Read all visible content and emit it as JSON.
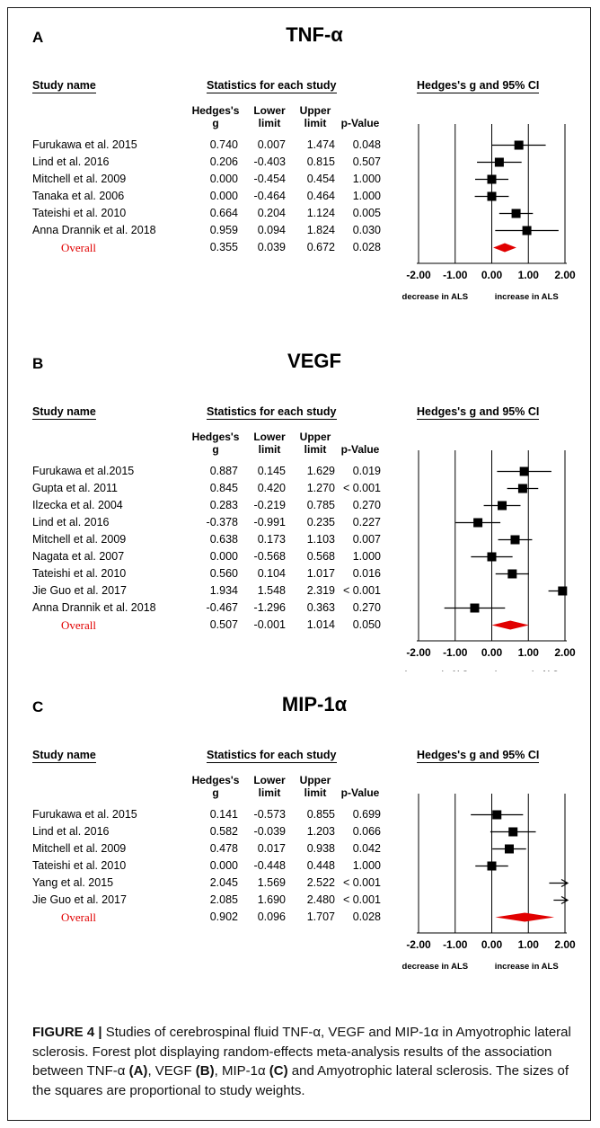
{
  "headers": {
    "study_name": "Study name",
    "stats": "Statistics for each study",
    "ci": "Hedges's g and 95% CI",
    "col_g": "Hedges's\ng",
    "col_lower": "Lower\nlimit",
    "col_upper": "Upper\nlimit",
    "col_p": "p-Value"
  },
  "axis": {
    "ticks": [
      "-2.00",
      "-1.00",
      "0.00",
      "1.00",
      "2.00"
    ],
    "left_label": "decrease in ALS",
    "right_label": "increase in ALS"
  },
  "chart_data": [
    {
      "type": "forest",
      "panel": "A",
      "title": "TNF-α",
      "xlim": [
        -2,
        2
      ],
      "rows": [
        {
          "study": "Furukawa et al. 2015",
          "g": "0.740",
          "lower": "0.007",
          "upper": "1.474",
          "p": "0.048"
        },
        {
          "study": "Lind et al. 2016",
          "g": "0.206",
          "lower": "-0.403",
          "upper": "0.815",
          "p": "0.507"
        },
        {
          "study": "Mitchell et al. 2009",
          "g": "0.000",
          "lower": "-0.454",
          "upper": "0.454",
          "p": "1.000"
        },
        {
          "study": "Tanaka et al. 2006",
          "g": "0.000",
          "lower": "-0.464",
          "upper": "0.464",
          "p": "1.000"
        },
        {
          "study": "Tateishi et al. 2010",
          "g": "0.664",
          "lower": "0.204",
          "upper": "1.124",
          "p": "0.005"
        },
        {
          "study": "Anna Drannik et al. 2018",
          "g": "0.959",
          "lower": "0.094",
          "upper": "1.824",
          "p": "0.030"
        }
      ],
      "overall": {
        "label": "Overall",
        "g": "0.355",
        "lower": "0.039",
        "upper": "0.672",
        "p": "0.028"
      }
    },
    {
      "type": "forest",
      "panel": "B",
      "title": "VEGF",
      "xlim": [
        -2,
        2
      ],
      "rows": [
        {
          "study": "Furukawa et al.2015",
          "g": "0.887",
          "lower": "0.145",
          "upper": "1.629",
          "p": "0.019"
        },
        {
          "study": "Gupta et al. 2011",
          "g": "0.845",
          "lower": "0.420",
          "upper": "1.270",
          "p": "< 0.001"
        },
        {
          "study": "Ilzecka et al. 2004",
          "g": "0.283",
          "lower": "-0.219",
          "upper": "0.785",
          "p": "0.270"
        },
        {
          "study": "Lind et al. 2016",
          "g": "-0.378",
          "lower": "-0.991",
          "upper": "0.235",
          "p": "0.227"
        },
        {
          "study": "Mitchell et al. 2009",
          "g": "0.638",
          "lower": "0.173",
          "upper": "1.103",
          "p": "0.007"
        },
        {
          "study": "Nagata et al. 2007",
          "g": "0.000",
          "lower": "-0.568",
          "upper": "0.568",
          "p": "1.000"
        },
        {
          "study": "Tateishi et al. 2010",
          "g": "0.560",
          "lower": "0.104",
          "upper": "1.017",
          "p": "0.016"
        },
        {
          "study": "Jie Guo et al. 2017",
          "g": "1.934",
          "lower": "1.548",
          "upper": "2.319",
          "p": "< 0.001"
        },
        {
          "study": "Anna Drannik et al. 2018",
          "g": "-0.467",
          "lower": "-1.296",
          "upper": "0.363",
          "p": "0.270"
        }
      ],
      "overall": {
        "label": "Overall",
        "g": "0.507",
        "lower": "-0.001",
        "upper": "1.014",
        "p": "0.050"
      }
    },
    {
      "type": "forest",
      "panel": "C",
      "title": "MIP-1α",
      "xlim": [
        -2,
        2
      ],
      "rows": [
        {
          "study": "Furukawa et al. 2015",
          "g": "0.141",
          "lower": "-0.573",
          "upper": "0.855",
          "p": "0.699"
        },
        {
          "study": "Lind et al. 2016",
          "g": "0.582",
          "lower": "-0.039",
          "upper": "1.203",
          "p": "0.066"
        },
        {
          "study": "Mitchell et al. 2009",
          "g": "0.478",
          "lower": "0.017",
          "upper": "0.938",
          "p": "0.042"
        },
        {
          "study": "Tateishi et al. 2010",
          "g": "0.000",
          "lower": "-0.448",
          "upper": "0.448",
          "p": "1.000"
        },
        {
          "study": "Yang et al. 2015",
          "g": "2.045",
          "lower": "1.569",
          "upper": "2.522",
          "p": "< 0.001"
        },
        {
          "study": "Jie Guo et al. 2017",
          "g": "2.085",
          "lower": "1.690",
          "upper": "2.480",
          "p": "< 0.001"
        }
      ],
      "overall": {
        "label": "Overall",
        "g": "0.902",
        "lower": "0.096",
        "upper": "1.707",
        "p": "0.028"
      }
    }
  ],
  "colors": {
    "overall": "#e10000",
    "marker": "#000000"
  },
  "caption": {
    "label": "FIGURE 4 |",
    "text_parts": [
      " Studies of cerebrospinal fluid TNF-α, VEGF and MIP-1α in Amyotrophic lateral sclerosis. Forest plot displaying random-effects meta-analysis results of the association between TNF-α ",
      "(A)",
      ", VEGF ",
      "(B)",
      ", MIP-1α ",
      "(C)",
      " and Amyotrophic lateral sclerosis. The sizes of the squares are proportional to study weights."
    ]
  }
}
